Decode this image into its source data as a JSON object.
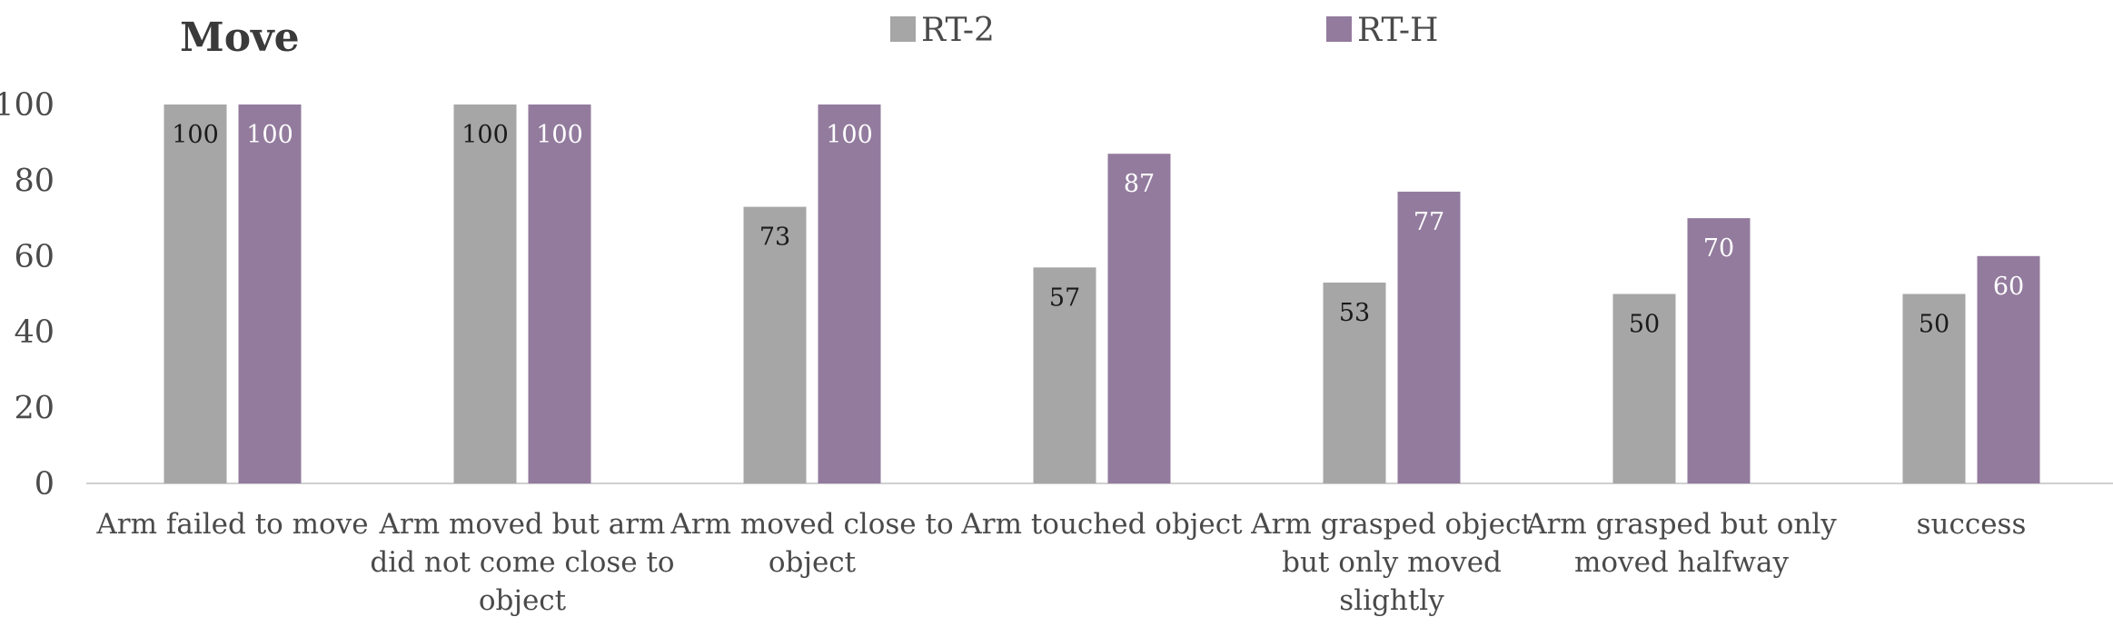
{
  "chart_data": {
    "type": "bar",
    "title": "Move",
    "xlabel": "",
    "ylabel": "",
    "ylim": [
      0,
      100
    ],
    "yticks": [
      "0",
      "20",
      "40",
      "60",
      "80",
      "100"
    ],
    "categories": [
      "Arm failed to move",
      "Arm moved but arm did not come close to object",
      "Arm moved close to object",
      "Arm touched object",
      "Arm grasped object but only moved slightly",
      "Arm grasped but only moved halfway",
      "success"
    ],
    "category_lines": [
      [
        "Arm failed to move"
      ],
      [
        "Arm moved but arm",
        "did not come close to",
        "object"
      ],
      [
        "Arm moved close to",
        "object"
      ],
      [
        "Arm touched object"
      ],
      [
        "Arm grasped object",
        "but only moved",
        "slightly"
      ],
      [
        "Arm grasped but only",
        "moved halfway"
      ],
      [
        "success"
      ]
    ],
    "series": [
      {
        "name": "RT-2",
        "color": "#a6a6a6",
        "label_color": "#1a1a1a",
        "values": [
          100,
          100,
          73,
          57,
          53,
          50,
          50
        ]
      },
      {
        "name": "RT-H",
        "color": "#937b9e",
        "label_color": "#ffffff",
        "values": [
          100,
          100,
          100,
          87,
          77,
          70,
          60
        ]
      }
    ],
    "legend_position": "top",
    "grid": false,
    "axis_color": "#d0d0d0"
  }
}
